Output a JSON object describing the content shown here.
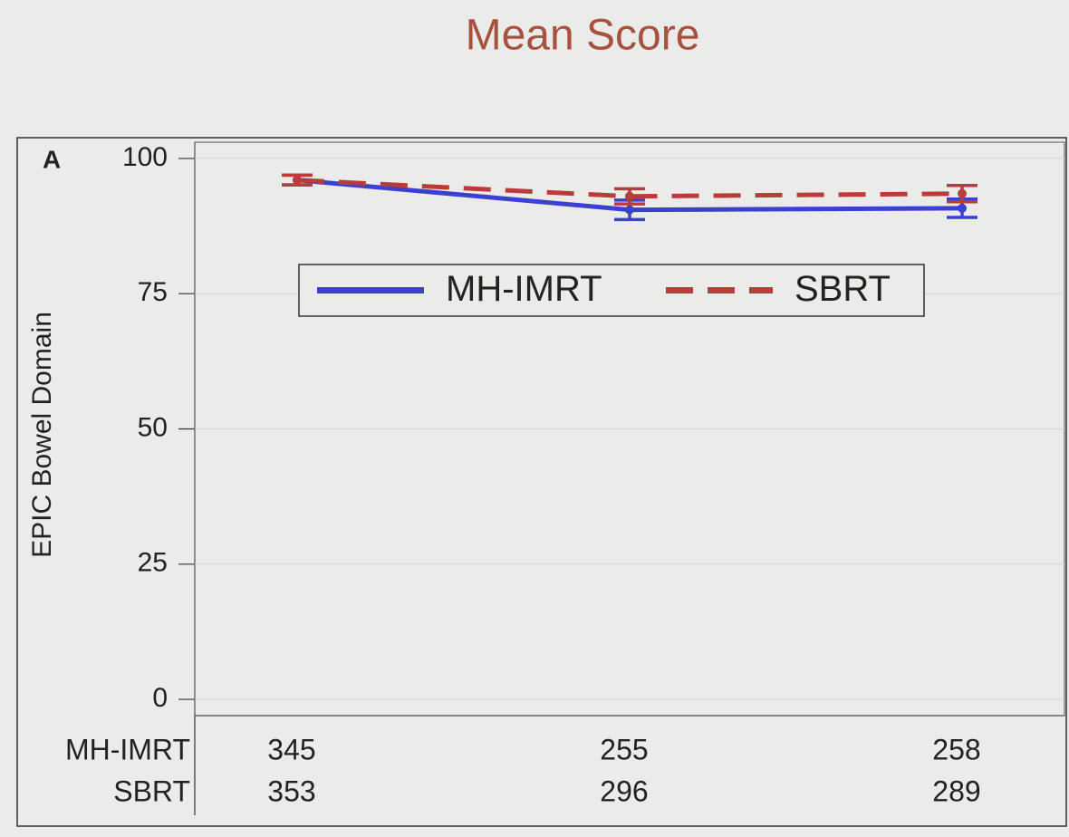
{
  "chart_data": {
    "type": "line",
    "title": "Mean Score",
    "panel_label": "A",
    "y_label": "EPIC Bowel Domain",
    "categories": [
      null,
      null,
      null
    ],
    "series": [
      {
        "name": "MH-IMRT",
        "color": "#3b40cf",
        "style": "solid",
        "values": [
          96,
          90.5,
          90.8
        ],
        "errors": [
          0.9,
          1.8,
          1.7
        ]
      },
      {
        "name": "SBRT",
        "color": "#b93c3a",
        "style": "dashed",
        "values": [
          96,
          93,
          93.5
        ],
        "errors": [
          0.9,
          1.4,
          1.5
        ]
      }
    ],
    "ylim": [
      -3,
      103
    ],
    "yticks": [
      0,
      25,
      50,
      75,
      100
    ],
    "grid": true,
    "legend": "top",
    "at_risk": [
      {
        "label": "MH-IMRT",
        "values": [
          345,
          255,
          258
        ]
      },
      {
        "label": "SBRT",
        "values": [
          353,
          296,
          289
        ]
      }
    ]
  }
}
